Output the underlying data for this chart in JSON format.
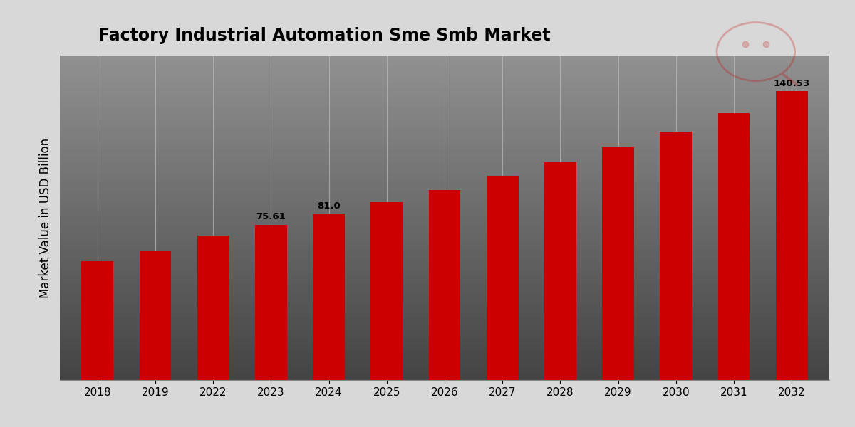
{
  "title": "Factory Industrial Automation Sme Smb Market",
  "ylabel": "Market Value in USD Billion",
  "categories": [
    "2018",
    "2019",
    "2022",
    "2023",
    "2024",
    "2025",
    "2026",
    "2027",
    "2028",
    "2029",
    "2030",
    "2031",
    "2032"
  ],
  "values": [
    58.0,
    63.0,
    70.5,
    75.61,
    81.0,
    86.5,
    92.5,
    99.5,
    106.0,
    113.5,
    121.0,
    130.0,
    140.53
  ],
  "bar_color": "#CC0000",
  "bar_annotations": {
    "2023": "75.61",
    "2024": "81.0",
    "2032": "140.53"
  },
  "title_fontsize": 17,
  "ylabel_fontsize": 12,
  "tick_fontsize": 11,
  "ylim": [
    0,
    158
  ],
  "grid_color": "#BBBBBB",
  "bg_top": "#F0F0F0",
  "bg_bottom": "#C8C8C8"
}
